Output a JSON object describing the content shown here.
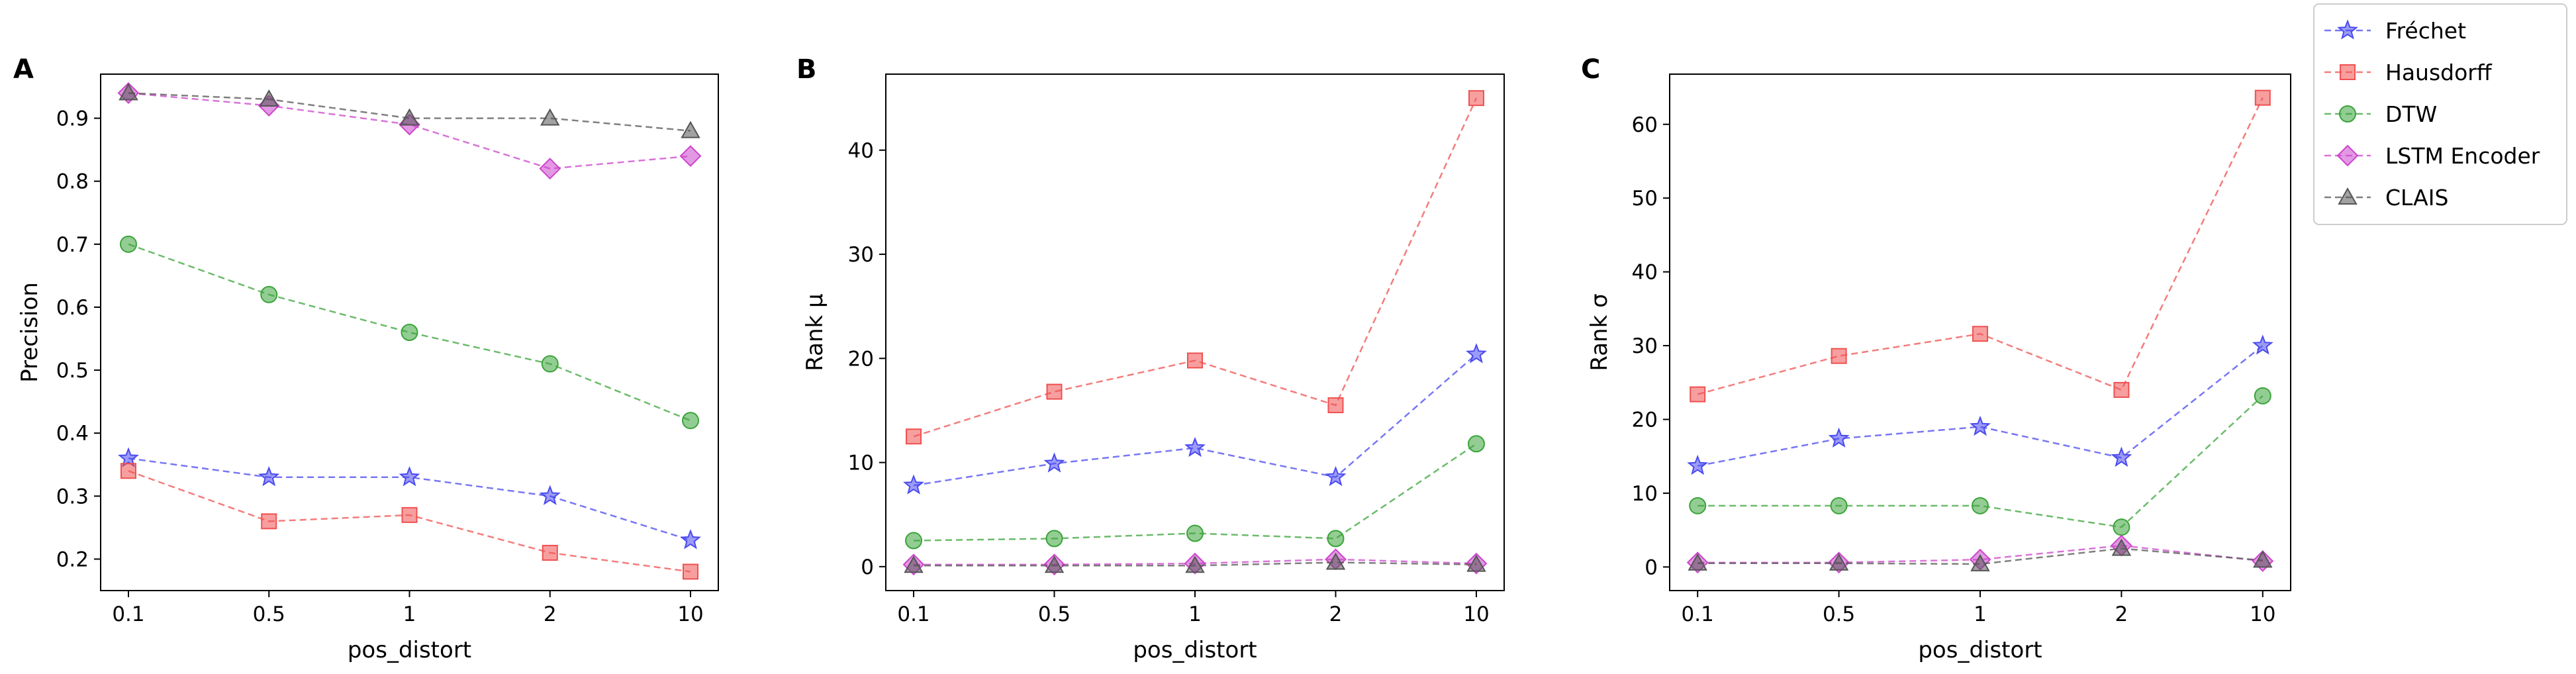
{
  "legend": {
    "entries": [
      {
        "name": "Fréchet",
        "color": "#4a4af0",
        "marker": "star-icon"
      },
      {
        "name": "Hausdorff",
        "color": "#f05050",
        "marker": "square-icon"
      },
      {
        "name": "DTW",
        "color": "#3aa43a",
        "marker": "circle-icon"
      },
      {
        "name": "LSTM Encoder",
        "color": "#cc44cc",
        "marker": "diamond-icon"
      },
      {
        "name": "CLAIS",
        "color": "#555555",
        "marker": "triangle-icon"
      }
    ]
  },
  "chart_data": [
    {
      "panel": "A",
      "type": "line",
      "categories": [
        "0.1",
        "0.5",
        "1",
        "2",
        "10"
      ],
      "xlabel": "pos_distort",
      "ylabel": "Precision",
      "ylim": [
        0.15,
        0.97
      ],
      "yticks": [
        0.2,
        0.3,
        0.4,
        0.5,
        0.6,
        0.7,
        0.8,
        0.9
      ],
      "series": [
        {
          "name": "Fréchet",
          "values": [
            0.36,
            0.33,
            0.33,
            0.3,
            0.23
          ]
        },
        {
          "name": "Hausdorff",
          "values": [
            0.34,
            0.26,
            0.27,
            0.21,
            0.18
          ]
        },
        {
          "name": "DTW",
          "values": [
            0.7,
            0.62,
            0.56,
            0.51,
            0.42
          ]
        },
        {
          "name": "LSTM Encoder",
          "values": [
            0.94,
            0.92,
            0.89,
            0.82,
            0.84
          ]
        },
        {
          "name": "CLAIS",
          "values": [
            0.94,
            0.93,
            0.9,
            0.9,
            0.88
          ]
        }
      ]
    },
    {
      "panel": "B",
      "type": "line",
      "categories": [
        "0.1",
        "0.5",
        "1",
        "2",
        "10"
      ],
      "xlabel": "pos_distort",
      "ylabel": "Rank μ",
      "ylim": [
        -2.3,
        47.3
      ],
      "yticks": [
        0,
        10,
        20,
        30,
        40
      ],
      "series": [
        {
          "name": "Fréchet",
          "values": [
            7.8,
            9.9,
            11.4,
            8.6,
            20.4
          ]
        },
        {
          "name": "Hausdorff",
          "values": [
            12.5,
            16.8,
            19.8,
            15.5,
            45.0
          ]
        },
        {
          "name": "DTW",
          "values": [
            2.5,
            2.7,
            3.2,
            2.7,
            11.8
          ]
        },
        {
          "name": "LSTM Encoder",
          "values": [
            0.2,
            0.2,
            0.3,
            0.7,
            0.3
          ]
        },
        {
          "name": "CLAIS",
          "values": [
            0.1,
            0.1,
            0.1,
            0.4,
            0.2
          ]
        }
      ]
    },
    {
      "panel": "C",
      "type": "line",
      "categories": [
        "0.1",
        "0.5",
        "1",
        "2",
        "10"
      ],
      "xlabel": "pos_distort",
      "ylabel": "Rank σ",
      "ylim": [
        -3.2,
        66.8
      ],
      "yticks": [
        0,
        10,
        20,
        30,
        40,
        50,
        60
      ],
      "series": [
        {
          "name": "Fréchet",
          "values": [
            13.7,
            17.4,
            19.0,
            14.8,
            30.0
          ]
        },
        {
          "name": "Hausdorff",
          "values": [
            23.4,
            28.6,
            31.6,
            24.0,
            63.6
          ]
        },
        {
          "name": "DTW",
          "values": [
            8.3,
            8.3,
            8.3,
            5.4,
            23.2
          ]
        },
        {
          "name": "LSTM Encoder",
          "values": [
            0.6,
            0.6,
            1.0,
            2.9,
            0.8
          ]
        },
        {
          "name": "CLAIS",
          "values": [
            0.5,
            0.5,
            0.4,
            2.5,
            0.9
          ]
        }
      ]
    }
  ]
}
